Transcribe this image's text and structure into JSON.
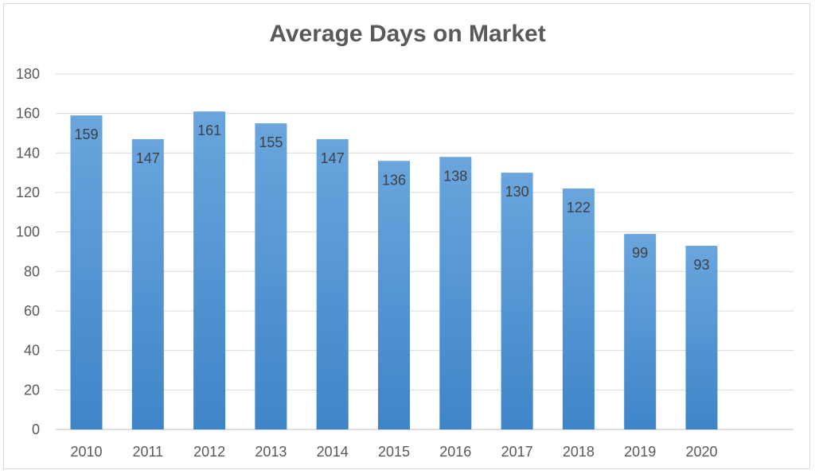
{
  "chart_data": {
    "type": "bar",
    "title": "Average Days on Market",
    "categories": [
      "2010",
      "2011",
      "2012",
      "2013",
      "2014",
      "2015",
      "2016",
      "2017",
      "2018",
      "2019",
      "2020"
    ],
    "values": [
      159,
      147,
      161,
      155,
      147,
      136,
      138,
      130,
      122,
      99,
      93
    ],
    "ylim": [
      0,
      180
    ],
    "yticks": [
      0,
      20,
      40,
      60,
      80,
      100,
      120,
      140,
      160,
      180
    ],
    "grid": true,
    "legend": "none",
    "colors": {
      "bar_top": "#6aa5dd",
      "bar_bottom": "#3e85c8",
      "grid": "#d9d9d9",
      "text": "#595959"
    }
  }
}
